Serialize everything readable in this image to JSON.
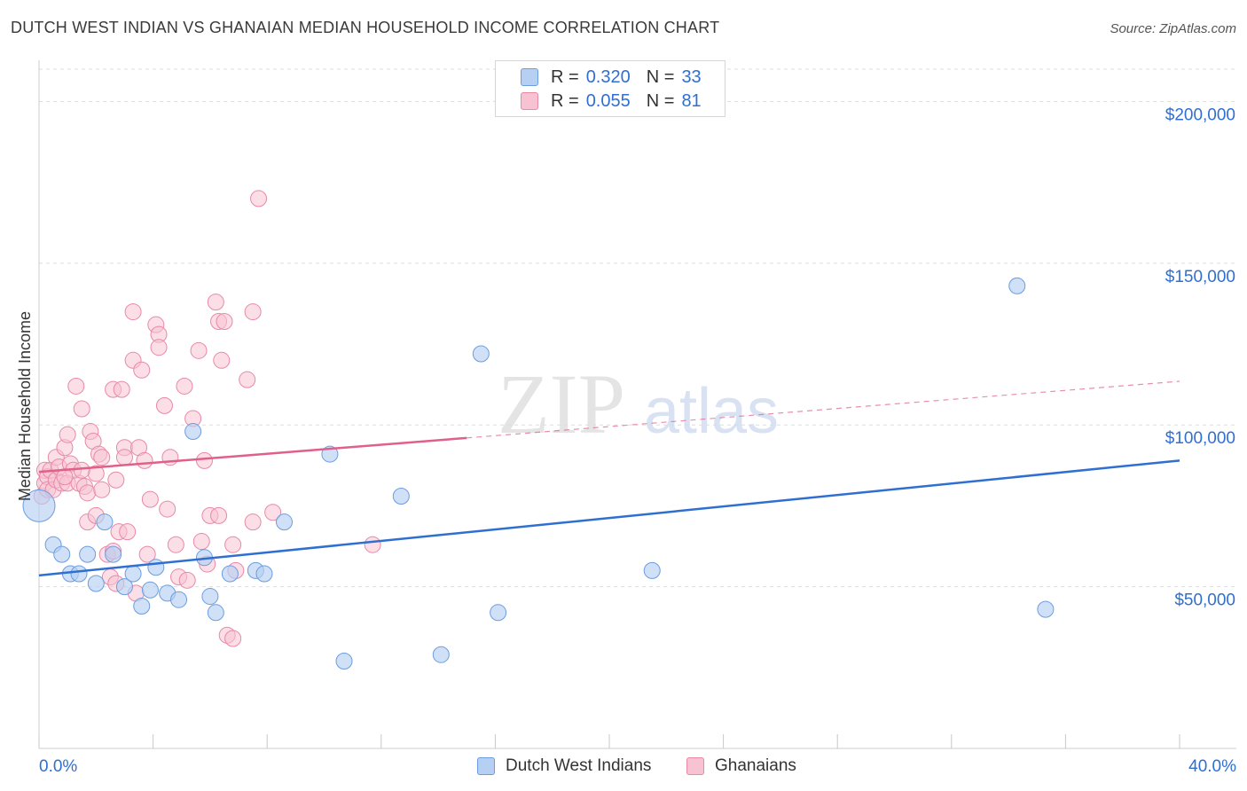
{
  "title": "DUTCH WEST INDIAN VS GHANAIAN MEDIAN HOUSEHOLD INCOME CORRELATION CHART",
  "source": "Source: ZipAtlas.com",
  "watermark": {
    "zip": "ZIP",
    "atlas": "atlas"
  },
  "legend": {
    "r_label": "R =",
    "n_label": "N =",
    "series": [
      {
        "name": "Dutch West Indians",
        "r": "0.320",
        "n": "33"
      },
      {
        "name": "Ghanaians",
        "r": "0.055",
        "n": "81"
      }
    ]
  },
  "colors": {
    "blue_fill": "#b6d0f3",
    "blue_stroke": "#6b9de0",
    "blue_line": "#2f6fd1",
    "pink_fill": "#f7c2d2",
    "pink_stroke": "#e889a8",
    "pink_line": "#e0608b",
    "axis_text": "#2f6fd1",
    "grid": "#dddddd"
  },
  "chart_data": {
    "type": "scatter",
    "title": "DUTCH WEST INDIAN VS GHANAIAN MEDIAN HOUSEHOLD INCOME CORRELATION CHART",
    "xlabel": "",
    "ylabel": "Median Household Income",
    "xlim": [
      0,
      40
    ],
    "ylim": [
      0,
      210000
    ],
    "x_tick_labels": [
      "0.0%",
      "40.0%"
    ],
    "y_ticks": [
      50000,
      100000,
      150000,
      200000
    ],
    "y_tick_labels": [
      "$50,000",
      "$100,000",
      "$150,000",
      "$200,000"
    ],
    "grid": true,
    "series": [
      {
        "name": "Dutch West Indians",
        "r": 0.32,
        "n": 33,
        "trend": {
          "x": [
            0,
            40
          ],
          "y": [
            53500,
            89000
          ],
          "style": "solid"
        },
        "points": [
          [
            0.0,
            75000
          ],
          [
            0.5,
            63000
          ],
          [
            0.8,
            60000
          ],
          [
            1.1,
            54000
          ],
          [
            1.4,
            54000
          ],
          [
            1.7,
            60000
          ],
          [
            2.0,
            51000
          ],
          [
            2.3,
            70000
          ],
          [
            2.6,
            60000
          ],
          [
            3.0,
            50000
          ],
          [
            3.3,
            54000
          ],
          [
            3.6,
            44000
          ],
          [
            3.9,
            49000
          ],
          [
            4.1,
            56000
          ],
          [
            4.5,
            48000
          ],
          [
            4.9,
            46000
          ],
          [
            5.4,
            98000
          ],
          [
            5.8,
            59000
          ],
          [
            6.0,
            47000
          ],
          [
            6.2,
            42000
          ],
          [
            6.7,
            54000
          ],
          [
            7.6,
            55000
          ],
          [
            7.9,
            54000
          ],
          [
            8.6,
            70000
          ],
          [
            10.2,
            91000
          ],
          [
            10.7,
            27000
          ],
          [
            12.7,
            78000
          ],
          [
            14.1,
            29000
          ],
          [
            15.5,
            122000
          ],
          [
            16.1,
            42000
          ],
          [
            21.5,
            55000
          ],
          [
            34.3,
            143000
          ],
          [
            35.3,
            43000
          ]
        ]
      },
      {
        "name": "Ghanaians",
        "r": 0.055,
        "n": 81,
        "trend": {
          "x": [
            0,
            15
          ],
          "y": [
            85500,
            96000
          ],
          "style": "solid",
          "dashed_extension": {
            "x": [
              15,
              40
            ],
            "y": [
              96000,
              113500
            ]
          }
        },
        "points": [
          [
            0.1,
            78000
          ],
          [
            0.2,
            82000
          ],
          [
            0.2,
            86000
          ],
          [
            0.3,
            84000
          ],
          [
            0.3,
            80000
          ],
          [
            0.4,
            86000
          ],
          [
            0.5,
            80000
          ],
          [
            0.6,
            83000
          ],
          [
            0.6,
            90000
          ],
          [
            0.7,
            87000
          ],
          [
            0.8,
            82000
          ],
          [
            0.9,
            93000
          ],
          [
            1.0,
            82000
          ],
          [
            1.0,
            97000
          ],
          [
            1.1,
            88000
          ],
          [
            1.3,
            112000
          ],
          [
            1.4,
            82000
          ],
          [
            1.5,
            105000
          ],
          [
            1.6,
            81000
          ],
          [
            1.7,
            70000
          ],
          [
            1.7,
            79000
          ],
          [
            1.8,
            98000
          ],
          [
            1.9,
            95000
          ],
          [
            2.0,
            72000
          ],
          [
            2.1,
            91000
          ],
          [
            2.2,
            90000
          ],
          [
            2.2,
            80000
          ],
          [
            2.4,
            60000
          ],
          [
            2.5,
            53000
          ],
          [
            2.6,
            111000
          ],
          [
            2.6,
            61000
          ],
          [
            2.7,
            51000
          ],
          [
            2.8,
            67000
          ],
          [
            2.9,
            111000
          ],
          [
            3.0,
            93000
          ],
          [
            3.0,
            90000
          ],
          [
            3.1,
            67000
          ],
          [
            3.3,
            135000
          ],
          [
            3.3,
            120000
          ],
          [
            3.4,
            48000
          ],
          [
            3.5,
            93000
          ],
          [
            3.6,
            117000
          ],
          [
            3.7,
            89000
          ],
          [
            3.8,
            60000
          ],
          [
            3.9,
            77000
          ],
          [
            4.1,
            131000
          ],
          [
            4.2,
            128000
          ],
          [
            4.2,
            124000
          ],
          [
            4.4,
            106000
          ],
          [
            4.5,
            74000
          ],
          [
            4.6,
            90000
          ],
          [
            4.8,
            63000
          ],
          [
            4.9,
            53000
          ],
          [
            5.1,
            112000
          ],
          [
            5.2,
            52000
          ],
          [
            5.4,
            102000
          ],
          [
            5.6,
            123000
          ],
          [
            5.7,
            64000
          ],
          [
            5.8,
            89000
          ],
          [
            5.9,
            57000
          ],
          [
            6.0,
            72000
          ],
          [
            6.2,
            138000
          ],
          [
            6.3,
            132000
          ],
          [
            6.3,
            72000
          ],
          [
            6.4,
            120000
          ],
          [
            6.5,
            132000
          ],
          [
            6.6,
            35000
          ],
          [
            6.8,
            34000
          ],
          [
            6.8,
            63000
          ],
          [
            6.9,
            55000
          ],
          [
            7.3,
            114000
          ],
          [
            7.5,
            135000
          ],
          [
            7.5,
            70000
          ],
          [
            7.7,
            170000
          ],
          [
            8.2,
            73000
          ],
          [
            11.7,
            63000
          ],
          [
            1.2,
            86000
          ],
          [
            0.9,
            84000
          ],
          [
            2.0,
            85000
          ],
          [
            1.5,
            86000
          ],
          [
            2.7,
            83000
          ]
        ]
      }
    ]
  }
}
